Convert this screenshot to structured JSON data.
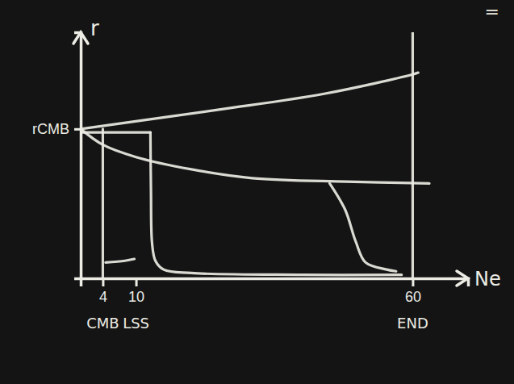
{
  "chart_data": {
    "type": "line",
    "x_label": "Ne",
    "y_label": "r",
    "xlim": [
      0,
      70
    ],
    "ylim": [
      0,
      1.4
    ],
    "xticks": [
      4,
      10,
      60
    ],
    "yticks": [
      {
        "value": 0.85,
        "label": "rCMB"
      }
    ],
    "annotations": [
      {
        "text": "CMB",
        "x": 4
      },
      {
        "text": "LSS",
        "x": 10
      },
      {
        "text": "END",
        "x": 60
      },
      {
        "text": "="
      }
    ],
    "grid": false,
    "color": "#ecece4",
    "series": [
      {
        "x": [
          0,
          25,
          44,
          60,
          61
        ],
        "values": [
          0.85,
          0.96,
          1.05,
          1.16,
          1.17
        ]
      },
      {
        "x": [
          0,
          4,
          10,
          20,
          31,
          48,
          63
        ],
        "values": [
          0.85,
          0.76,
          0.69,
          0.62,
          0.57,
          0.55,
          0.54
        ]
      },
      {
        "x": [
          0,
          12.6
        ],
        "values": [
          0.83,
          0.83
        ]
      },
      {
        "x": [
          12.6,
          12.7,
          12.9,
          13.5,
          15,
          20,
          40,
          58
        ],
        "values": [
          0.83,
          0.5,
          0.2,
          0.1,
          0.05,
          0.03,
          0.02,
          0.02
        ]
      },
      {
        "x": [
          4.5,
          8,
          9.7
        ],
        "values": [
          0.09,
          0.1,
          0.11
        ]
      },
      {
        "x": [
          45,
          47.8,
          49.7,
          51.5,
          55.3,
          57
        ],
        "values": [
          0.54,
          0.39,
          0.21,
          0.09,
          0.05,
          0.04
        ]
      },
      {
        "x": [
          4,
          4
        ],
        "values": [
          0,
          0.85
        ]
      },
      {
        "x": [
          60,
          60
        ],
        "values": [
          0,
          1.4
        ]
      }
    ]
  }
}
